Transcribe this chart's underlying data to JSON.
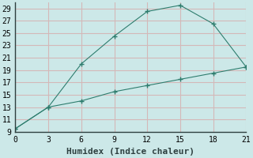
{
  "line1_x": [
    0,
    3,
    6,
    9,
    12,
    15,
    18,
    21
  ],
  "line1_y": [
    9.5,
    13,
    20,
    24.5,
    28.5,
    29.5,
    26.5,
    19.5
  ],
  "line2_x": [
    0,
    3,
    6,
    9,
    12,
    15,
    18,
    21
  ],
  "line2_y": [
    9.5,
    13,
    14,
    15.5,
    16.5,
    17.5,
    18.5,
    19.5
  ],
  "line_color": "#2e7d6e",
  "background_color": "#cce8e8",
  "grid_color": "#d4b8b8",
  "xlabel": "Humidex (Indice chaleur)",
  "xlim": [
    0,
    21
  ],
  "ylim": [
    9,
    30
  ],
  "xticks": [
    0,
    3,
    6,
    9,
    12,
    15,
    18,
    21
  ],
  "yticks": [
    9,
    11,
    13,
    15,
    17,
    19,
    21,
    23,
    25,
    27,
    29
  ],
  "marker": "+",
  "markersize": 4,
  "linewidth": 0.8,
  "font_family": "monospace",
  "xlabel_fontsize": 8,
  "tick_fontsize": 7
}
